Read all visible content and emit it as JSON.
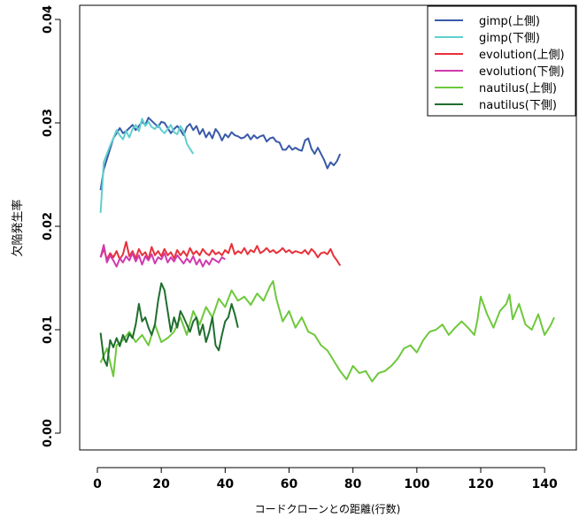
{
  "chart_data": {
    "type": "line",
    "title": "",
    "xlabel": "コードクローンとの距離(行数)",
    "ylabel": "欠陥発生率",
    "xlim": [
      0,
      145
    ],
    "ylim": [
      0,
      0.04
    ],
    "x_ticks": [
      0,
      20,
      40,
      60,
      80,
      100,
      120,
      140
    ],
    "x_tick_labels": [
      "0",
      "20",
      "40",
      "60",
      "80",
      "100",
      "120",
      "140"
    ],
    "y_ticks": [
      0,
      0.01,
      0.02,
      0.03,
      0.04
    ],
    "y_tick_labels": [
      "0.00",
      "0.01",
      "0.02",
      "0.03",
      "0.04"
    ],
    "legend_position": "top-right",
    "grid": false,
    "series": [
      {
        "name": "gimp(上側)",
        "color": "#3a5aa8",
        "x": [
          1,
          2,
          3,
          4,
          5,
          6,
          7,
          8,
          9,
          10,
          11,
          12,
          13,
          14,
          15,
          16,
          17,
          18,
          19,
          20,
          21,
          22,
          23,
          24,
          25,
          26,
          27,
          28,
          29,
          30,
          31,
          32,
          33,
          34,
          35,
          36,
          37,
          38,
          39,
          40,
          41,
          42,
          43,
          44,
          45,
          46,
          47,
          48,
          49,
          50,
          51,
          52,
          53,
          54,
          55,
          56,
          57,
          58,
          59,
          60,
          61,
          62,
          63,
          64,
          65,
          66,
          67,
          68,
          69,
          70,
          71,
          72,
          73,
          74,
          75,
          76
        ],
        "values": [
          0.0235,
          0.0255,
          0.0265,
          0.0275,
          0.0285,
          0.029,
          0.0295,
          0.029,
          0.0292,
          0.0295,
          0.0298,
          0.0293,
          0.0297,
          0.0301,
          0.0298,
          0.0305,
          0.0302,
          0.0299,
          0.0296,
          0.0301,
          0.03,
          0.0295,
          0.029,
          0.0294,
          0.0297,
          0.0293,
          0.0288,
          0.0296,
          0.0299,
          0.0293,
          0.0297,
          0.0289,
          0.0294,
          0.0286,
          0.0291,
          0.0285,
          0.0294,
          0.029,
          0.0283,
          0.0289,
          0.0286,
          0.0291,
          0.0288,
          0.0287,
          0.0285,
          0.0286,
          0.0289,
          0.0284,
          0.0288,
          0.0285,
          0.0287,
          0.0288,
          0.0282,
          0.0285,
          0.0286,
          0.0282,
          0.0281,
          0.0274,
          0.0274,
          0.0278,
          0.0274,
          0.0276,
          0.0274,
          0.0273,
          0.0283,
          0.0285,
          0.0275,
          0.027,
          0.0276,
          0.027,
          0.0264,
          0.0256,
          0.0262,
          0.0259,
          0.0263,
          0.027
        ]
      },
      {
        "name": "gimp(下側)",
        "color": "#5fcfcf",
        "x": [
          1,
          2,
          3,
          4,
          5,
          6,
          7,
          8,
          9,
          10,
          11,
          12,
          13,
          14,
          15,
          16,
          17,
          18,
          19,
          20,
          21,
          22,
          23,
          24,
          25,
          26,
          27,
          28,
          29,
          30
        ],
        "values": [
          0.0213,
          0.0262,
          0.027,
          0.0278,
          0.0285,
          0.0293,
          0.0288,
          0.0284,
          0.0292,
          0.0286,
          0.0294,
          0.0298,
          0.0292,
          0.0304,
          0.0297,
          0.0301,
          0.0296,
          0.0294,
          0.0298,
          0.0293,
          0.029,
          0.0294,
          0.0298,
          0.0291,
          0.0289,
          0.0297,
          0.0292,
          0.028,
          0.0275,
          0.027
        ]
      },
      {
        "name": "evolution(上側)",
        "color": "#e8303a",
        "x": [
          1,
          2,
          3,
          4,
          5,
          6,
          7,
          8,
          9,
          10,
          11,
          12,
          13,
          14,
          15,
          16,
          17,
          18,
          19,
          20,
          21,
          22,
          23,
          24,
          25,
          26,
          27,
          28,
          29,
          30,
          31,
          32,
          33,
          34,
          35,
          36,
          37,
          38,
          39,
          40,
          41,
          42,
          43,
          44,
          45,
          46,
          47,
          48,
          49,
          50,
          51,
          52,
          53,
          54,
          55,
          56,
          57,
          58,
          59,
          60,
          61,
          62,
          63,
          64,
          65,
          66,
          67,
          68,
          69,
          70,
          71,
          72,
          73,
          74,
          75,
          76
        ],
        "values": [
          0.017,
          0.0178,
          0.0168,
          0.0174,
          0.017,
          0.0176,
          0.0168,
          0.0173,
          0.0185,
          0.0171,
          0.0176,
          0.0169,
          0.0178,
          0.0172,
          0.0175,
          0.0168,
          0.018,
          0.0172,
          0.0176,
          0.0171,
          0.0178,
          0.0172,
          0.0175,
          0.0169,
          0.0177,
          0.0172,
          0.0176,
          0.0171,
          0.0179,
          0.0173,
          0.0176,
          0.0172,
          0.0178,
          0.0174,
          0.0172,
          0.0177,
          0.0173,
          0.0175,
          0.0172,
          0.0177,
          0.0174,
          0.0183,
          0.0173,
          0.0176,
          0.0174,
          0.0179,
          0.0173,
          0.0177,
          0.0175,
          0.0181,
          0.0174,
          0.0176,
          0.0179,
          0.0175,
          0.0177,
          0.0174,
          0.0176,
          0.0179,
          0.0175,
          0.0177,
          0.0174,
          0.0176,
          0.0175,
          0.0174,
          0.0177,
          0.0173,
          0.0178,
          0.0175,
          0.017,
          0.0174,
          0.0175,
          0.0173,
          0.0178,
          0.0171,
          0.0167,
          0.0162
        ]
      },
      {
        "name": "evolution(下側)",
        "color": "#d03aae",
        "x": [
          1,
          2,
          3,
          4,
          5,
          6,
          7,
          8,
          9,
          10,
          11,
          12,
          13,
          14,
          15,
          16,
          17,
          18,
          19,
          20,
          21,
          22,
          23,
          24,
          25,
          26,
          27,
          28,
          29,
          30,
          31,
          32,
          33,
          34,
          35,
          36,
          37,
          38,
          39,
          40
        ],
        "values": [
          0.017,
          0.0182,
          0.0165,
          0.0172,
          0.0167,
          0.0161,
          0.0169,
          0.0165,
          0.0171,
          0.0167,
          0.0174,
          0.0166,
          0.0172,
          0.0163,
          0.0171,
          0.0167,
          0.0173,
          0.0164,
          0.017,
          0.0168,
          0.0174,
          0.0165,
          0.017,
          0.0166,
          0.0172,
          0.0168,
          0.0164,
          0.0169,
          0.0165,
          0.0171,
          0.0163,
          0.0168,
          0.0161,
          0.0167,
          0.0163,
          0.0169,
          0.0167,
          0.0165,
          0.017,
          0.0168
        ]
      },
      {
        "name": "nautilus(上側)",
        "color": "#6ec83c",
        "x": [
          1,
          3,
          5,
          6,
          8,
          10,
          12,
          14,
          16,
          18,
          20,
          22,
          24,
          26,
          28,
          30,
          32,
          34,
          36,
          38,
          40,
          42,
          44,
          46,
          48,
          50,
          52,
          54,
          55,
          56,
          58,
          60,
          62,
          64,
          66,
          68,
          70,
          72,
          74,
          76,
          78,
          80,
          82,
          84,
          86,
          88,
          90,
          92,
          94,
          96,
          98,
          100,
          102,
          104,
          106,
          108,
          110,
          112,
          114,
          116,
          118,
          119,
          120,
          122,
          124,
          126,
          128,
          129,
          130,
          132,
          134,
          136,
          138,
          140,
          142,
          143
        ],
        "values": [
          0.0068,
          0.0082,
          0.0055,
          0.0085,
          0.009,
          0.0098,
          0.0088,
          0.0095,
          0.0085,
          0.0105,
          0.0088,
          0.0092,
          0.0098,
          0.0112,
          0.0095,
          0.0118,
          0.0105,
          0.0122,
          0.0112,
          0.013,
          0.0122,
          0.0138,
          0.0128,
          0.0132,
          0.0124,
          0.0135,
          0.0128,
          0.0142,
          0.0147,
          0.013,
          0.0108,
          0.0118,
          0.0102,
          0.0112,
          0.0098,
          0.0095,
          0.0085,
          0.008,
          0.007,
          0.006,
          0.0052,
          0.0065,
          0.0058,
          0.006,
          0.005,
          0.0058,
          0.006,
          0.0065,
          0.0072,
          0.0082,
          0.0085,
          0.0078,
          0.009,
          0.0098,
          0.01,
          0.0105,
          0.0095,
          0.0102,
          0.0108,
          0.0102,
          0.0095,
          0.011,
          0.0132,
          0.0115,
          0.0102,
          0.0118,
          0.0125,
          0.0134,
          0.011,
          0.0125,
          0.0105,
          0.01,
          0.0115,
          0.0095,
          0.0105,
          0.0112
        ]
      },
      {
        "name": "nautilus(下側)",
        "color": "#1f6e2e",
        "x": [
          1,
          2,
          3,
          4,
          5,
          6,
          7,
          8,
          9,
          10,
          11,
          12,
          13,
          14,
          15,
          16,
          17,
          18,
          19,
          20,
          21,
          22,
          23,
          24,
          25,
          26,
          27,
          28,
          29,
          30,
          31,
          32,
          33,
          34,
          35,
          36,
          37,
          38,
          39,
          40,
          41,
          42,
          43,
          44
        ],
        "values": [
          0.0097,
          0.0072,
          0.0065,
          0.009,
          0.0083,
          0.0092,
          0.0084,
          0.0095,
          0.0088,
          0.0096,
          0.0092,
          0.0105,
          0.0125,
          0.0108,
          0.0112,
          0.0102,
          0.0095,
          0.0105,
          0.0128,
          0.0145,
          0.0138,
          0.0118,
          0.0098,
          0.0112,
          0.0102,
          0.0118,
          0.0112,
          0.0105,
          0.0098,
          0.0108,
          0.0112,
          0.0095,
          0.0105,
          0.0088,
          0.0098,
          0.0112,
          0.0085,
          0.008,
          0.0095,
          0.0108,
          0.0112,
          0.0125,
          0.0115,
          0.0102
        ]
      }
    ]
  }
}
